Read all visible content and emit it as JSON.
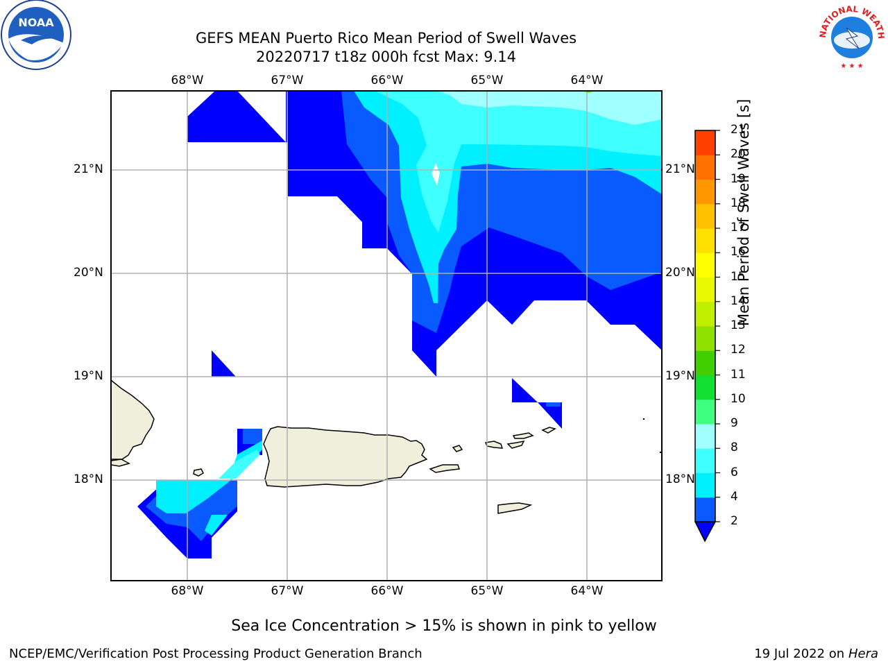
{
  "title": {
    "line1": "GEFS MEAN Puerto Rico Mean Period of Swell Waves",
    "line2": "20220717 t18z 000h fcst   Max: 9.14"
  },
  "map": {
    "lon_labels": [
      "68°W",
      "67°W",
      "66°W",
      "65°W",
      "64°W"
    ],
    "lat_labels": [
      "21°N",
      "20°N",
      "19°N",
      "18°N"
    ],
    "land_color": "#efefdc",
    "grid_color": "#b0b0b0"
  },
  "colorbar": {
    "label": "Mean Period of Swell Waves [s]",
    "levels": [
      "2",
      "4",
      "6",
      "8",
      "9",
      "10",
      "11",
      "12",
      "13",
      "14",
      "15",
      "16",
      "17",
      "18",
      "19",
      "20",
      "21"
    ],
    "colors": [
      "#0a5bff",
      "#00f0ff",
      "#40ffff",
      "#a0ffff",
      "#40ff80",
      "#10e030",
      "#40d000",
      "#90e000",
      "#c0f000",
      "#e8f800",
      "#ffff00",
      "#ffe000",
      "#ffc000",
      "#ff9800",
      "#ff7000",
      "#ff4000",
      "#ff1000"
    ],
    "under_color": "#0000ff"
  },
  "footer": {
    "note": "Sea Ice Concentration > 15% is shown in pink to yellow",
    "credit": "NCEP/EMC/Verification Post Processing Product Generation Branch",
    "date_prefix": "19 Jul 2022 on ",
    "date_host": "Hera"
  },
  "logos": {
    "noaa_text": "NOAA",
    "nws_text": "NATIONAL WEATHER SERVICE"
  }
}
